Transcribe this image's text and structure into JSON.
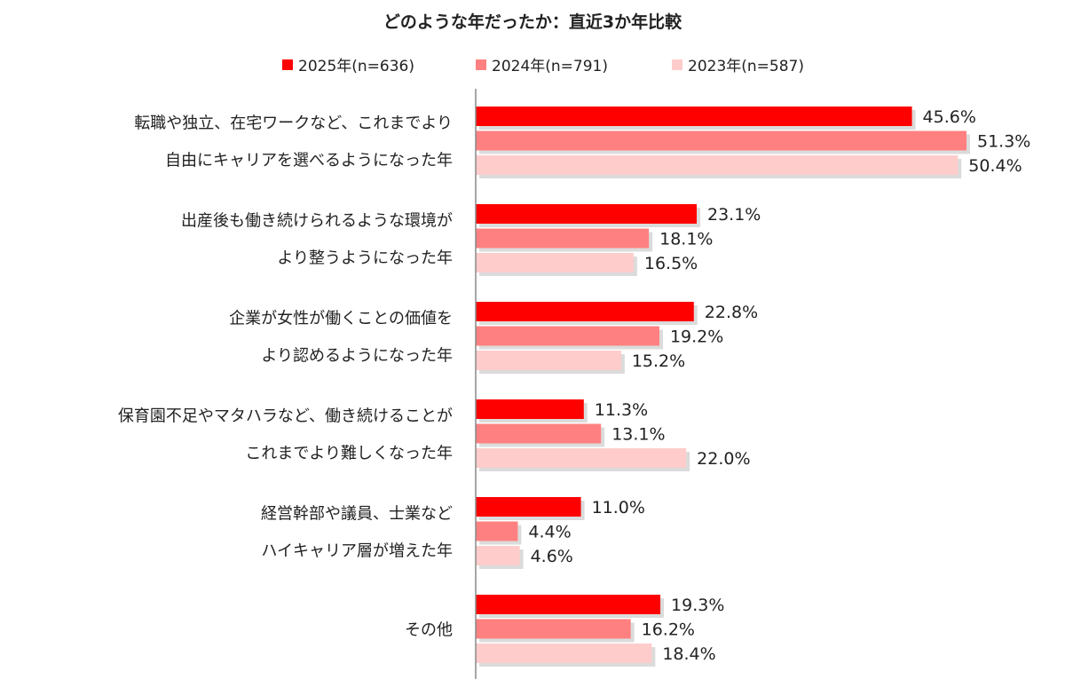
{
  "chart_data": {
    "type": "bar",
    "orientation": "horizontal",
    "title": "どのような年だったか：直近3か年比較",
    "categories": [
      [
        "転職や独立、在宅ワークなど、これまでより",
        "自由にキャリアを選べるようになった年"
      ],
      [
        "出産後も働き続けられるような環境が",
        "より整うようになった年"
      ],
      [
        "企業が女性が働くことの価値を",
        "より認めるようになった年"
      ],
      [
        "保育園不足やマタハラなど、働き続けることが",
        "これまでより難しくなった年"
      ],
      [
        "経営幹部や議員、士業など",
        "ハイキャリア層が増えた年"
      ],
      [
        "その他"
      ]
    ],
    "series": [
      {
        "name": "2025年(n=636)",
        "color": "#ff0000",
        "values": [
          45.6,
          23.1,
          22.8,
          11.3,
          11.0,
          19.3
        ],
        "labels": [
          "45.6%",
          "23.1%",
          "22.8%",
          "11.3%",
          "11.0%",
          "19.3%"
        ]
      },
      {
        "name": "2024年(n=791)",
        "color": "#ff8080",
        "values": [
          51.3,
          18.1,
          19.2,
          13.1,
          4.4,
          16.2
        ],
        "labels": [
          "51.3%",
          "18.1%",
          "19.2%",
          "13.1%",
          "4.4%",
          "16.2%"
        ]
      },
      {
        "name": "2023年(n=587)",
        "color": "#ffcccc",
        "values": [
          50.4,
          16.5,
          15.2,
          22.0,
          4.6,
          18.4
        ],
        "labels": [
          "50.4%",
          "16.5%",
          "15.2%",
          "22.0%",
          "4.6%",
          "18.4%"
        ]
      }
    ],
    "xlim": [
      0,
      55
    ],
    "legend_position": "top",
    "grid": false
  }
}
